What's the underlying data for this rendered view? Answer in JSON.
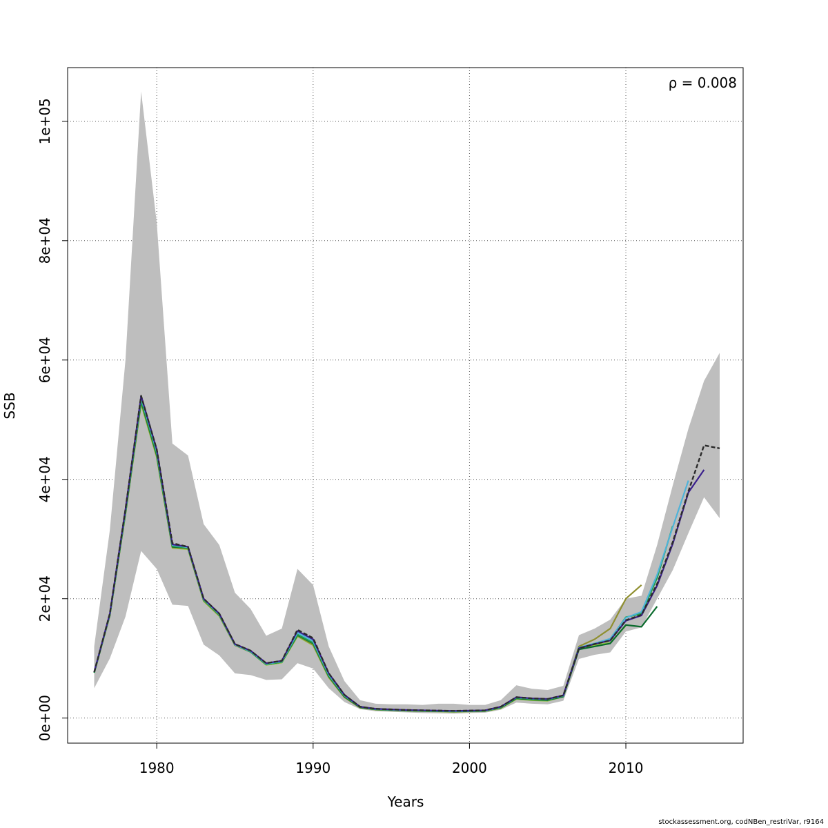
{
  "chart_data": {
    "type": "line",
    "xlabel": "Years",
    "ylabel": "SSB",
    "annotation": "ρ = 0.008",
    "xlim": [
      1974.3,
      2017.5
    ],
    "ylim": [
      -4200,
      109000
    ],
    "x_ticks": [
      1980,
      1990,
      2000,
      2010
    ],
    "x_tick_labels": [
      "1980",
      "1990",
      "2000",
      "2010"
    ],
    "y_ticks": [
      0,
      20000,
      40000,
      60000,
      80000,
      100000
    ],
    "y_tick_labels": [
      "0e+00",
      "2e+04",
      "4e+04",
      "6e+04",
      "8e+04",
      "1e+05"
    ],
    "grid": true,
    "band_color": "#bebebe",
    "confidence_band": {
      "x": [
        1976,
        1977,
        1978,
        1979,
        1980,
        1981,
        1982,
        1983,
        1984,
        1985,
        1986,
        1987,
        1988,
        1989,
        1990,
        1991,
        1992,
        1993,
        1994,
        1995,
        1996,
        1997,
        1998,
        1999,
        2000,
        2001,
        2002,
        2003,
        2004,
        2005,
        2006,
        2007,
        2008,
        2009,
        2010,
        2011,
        2012,
        2013,
        2014,
        2015,
        2016
      ],
      "lower": [
        5000,
        10000,
        17000,
        28000,
        25000,
        19000,
        18800,
        12300,
        10500,
        7500,
        7200,
        6400,
        6500,
        9200,
        8300,
        5000,
        2700,
        1500,
        1150,
        1050,
        950,
        850,
        800,
        750,
        850,
        900,
        1400,
        2600,
        2400,
        2300,
        2900,
        9900,
        10600,
        11000,
        14500,
        15200,
        20000,
        24800,
        31000,
        37000,
        33500
      ],
      "upper": [
        12000,
        31500,
        60000,
        105000,
        83000,
        46000,
        44000,
        32500,
        29000,
        21000,
        18300,
        13800,
        15000,
        25000,
        22300,
        12000,
        6200,
        3000,
        2400,
        2300,
        2300,
        2200,
        2400,
        2400,
        2200,
        2200,
        3000,
        5500,
        4900,
        4700,
        5400,
        13900,
        15000,
        16500,
        20000,
        20500,
        29000,
        39000,
        48500,
        56500,
        61200
      ]
    },
    "series": [
      {
        "color": "#2b2b2b",
        "dashed": true,
        "x": [
          1976,
          1977,
          1978,
          1979,
          1980,
          1981,
          1982,
          1983,
          1984,
          1985,
          1986,
          1987,
          1988,
          1989,
          1990,
          1991,
          1992,
          1993,
          1994,
          1995,
          1996,
          1997,
          1998,
          1999,
          2000,
          2001,
          2002,
          2003,
          2004,
          2005,
          2006,
          2007,
          2008,
          2009,
          2010,
          2011,
          2012,
          2013,
          2014,
          2015,
          2016
        ],
        "values": [
          7700,
          17500,
          35000,
          54000,
          45000,
          29300,
          28700,
          20000,
          17500,
          12400,
          11300,
          9200,
          9600,
          14800,
          13400,
          7500,
          3900,
          1900,
          1550,
          1450,
          1350,
          1300,
          1250,
          1200,
          1250,
          1300,
          1900,
          3500,
          3300,
          3200,
          3800,
          11700,
          12400,
          13000,
          16400,
          17300,
          22500,
          29500,
          38000,
          45700,
          45200
        ]
      },
      {
        "color": "#3a1f8c",
        "dashed": false,
        "x": [
          1976,
          1977,
          1978,
          1979,
          1980,
          1981,
          1982,
          1983,
          1984,
          1985,
          1986,
          1987,
          1988,
          1989,
          1990,
          1991,
          1992,
          1993,
          1994,
          1995,
          1996,
          1997,
          1998,
          1999,
          2000,
          2001,
          2002,
          2003,
          2004,
          2005,
          2006,
          2007,
          2008,
          2009,
          2010,
          2011,
          2012,
          2013,
          2014,
          2015
        ],
        "values": [
          7700,
          17500,
          35000,
          54000,
          45000,
          29100,
          28700,
          20000,
          17500,
          12400,
          11300,
          9200,
          9600,
          14600,
          13200,
          7500,
          3900,
          1900,
          1550,
          1450,
          1350,
          1300,
          1250,
          1200,
          1250,
          1300,
          1900,
          3500,
          3300,
          3200,
          3800,
          11700,
          12400,
          13000,
          16300,
          17200,
          22200,
          29200,
          37800,
          41600
        ]
      },
      {
        "color": "#4fb3d9",
        "dashed": false,
        "x": [
          1976,
          1977,
          1978,
          1979,
          1980,
          1981,
          1982,
          1983,
          1984,
          1985,
          1986,
          1987,
          1988,
          1989,
          1990,
          1991,
          1992,
          1993,
          1994,
          1995,
          1996,
          1997,
          1998,
          1999,
          2000,
          2001,
          2002,
          2003,
          2004,
          2005,
          2006,
          2007,
          2008,
          2009,
          2010,
          2011,
          2012,
          2013,
          2014
        ],
        "values": [
          7700,
          17400,
          34800,
          53700,
          44700,
          29000,
          28600,
          19900,
          17400,
          12300,
          11200,
          9100,
          9500,
          14300,
          12900,
          7300,
          3800,
          1900,
          1500,
          1400,
          1300,
          1250,
          1200,
          1150,
          1200,
          1250,
          1850,
          3450,
          3250,
          3150,
          3750,
          11800,
          12500,
          13300,
          16800,
          17800,
          24000,
          32000,
          39800
        ]
      },
      {
        "color": "#1e9e4a",
        "dashed": false,
        "x": [
          1976,
          1977,
          1978,
          1979,
          1980,
          1981,
          1982,
          1983,
          1984,
          1985,
          1986,
          1987,
          1988,
          1989,
          1990,
          1991,
          1992,
          1993,
          1994,
          1995,
          1996,
          1997,
          1998,
          1999,
          2000,
          2001,
          2002,
          2003,
          2004,
          2005,
          2006,
          2007,
          2008,
          2009,
          2010,
          2011,
          2012,
          2013
        ],
        "values": [
          7600,
          17300,
          34500,
          53300,
          44300,
          28800,
          28500,
          19800,
          17300,
          12300,
          11100,
          9000,
          9400,
          14000,
          12600,
          7100,
          3700,
          1850,
          1500,
          1400,
          1300,
          1250,
          1200,
          1150,
          1200,
          1250,
          1800,
          3400,
          3200,
          3100,
          3700,
          11800,
          12500,
          13200,
          16900,
          17500,
          23500,
          32200
        ]
      },
      {
        "color": "#0b6b2e",
        "dashed": false,
        "x": [
          1976,
          1977,
          1978,
          1979,
          1980,
          1981,
          1982,
          1983,
          1984,
          1985,
          1986,
          1987,
          1988,
          1989,
          1990,
          1991,
          1992,
          1993,
          1994,
          1995,
          1996,
          1997,
          1998,
          1999,
          2000,
          2001,
          2002,
          2003,
          2004,
          2005,
          2006,
          2007,
          2008,
          2009,
          2010,
          2011,
          2012
        ],
        "values": [
          7600,
          17300,
          34400,
          53100,
          44100,
          28700,
          28500,
          19800,
          17300,
          12300,
          11100,
          9000,
          9400,
          13900,
          12500,
          7000,
          3600,
          1800,
          1450,
          1350,
          1250,
          1200,
          1150,
          1100,
          1150,
          1200,
          1750,
          3300,
          3100,
          3000,
          3600,
          11500,
          12000,
          12500,
          15600,
          15300,
          18700
        ]
      },
      {
        "color": "#8f8f2f",
        "dashed": false,
        "x": [
          1976,
          1977,
          1978,
          1979,
          1980,
          1981,
          1982,
          1983,
          1984,
          1985,
          1986,
          1987,
          1988,
          1989,
          1990,
          1991,
          1992,
          1993,
          1994,
          1995,
          1996,
          1997,
          1998,
          1999,
          2000,
          2001,
          2002,
          2003,
          2004,
          2005,
          2006,
          2007,
          2008,
          2009,
          2010,
          2011
        ],
        "values": [
          7600,
          17200,
          34300,
          52900,
          43900,
          28600,
          28400,
          19700,
          17200,
          12200,
          11100,
          9000,
          9400,
          13800,
          12300,
          6900,
          3500,
          1750,
          1450,
          1350,
          1250,
          1200,
          1150,
          1100,
          1150,
          1200,
          1700,
          3300,
          3100,
          3000,
          3700,
          12000,
          13200,
          15000,
          20000,
          22300
        ]
      },
      {
        "color": "#8cc43a",
        "dashed": false,
        "x": [
          1976,
          1977,
          1978,
          1979,
          1980,
          1981,
          1982,
          1983,
          1984,
          1985,
          1986,
          1987,
          1988,
          1989,
          1990,
          1991,
          1992,
          1993,
          1994,
          1995,
          1996,
          1997,
          1998,
          1999,
          2000,
          2001,
          2002,
          2003,
          2004,
          2005,
          2006,
          2007,
          2008,
          2009,
          2010
        ],
        "values": [
          7600,
          17200,
          34200,
          52700,
          43700,
          28500,
          28300,
          19600,
          17100,
          12200,
          11100,
          8900,
          9300,
          13700,
          12200,
          6800,
          3500,
          1750,
          1400,
          1300,
          1200,
          1150,
          1100,
          1050,
          1100,
          1150,
          1650,
          3200,
          3000,
          2900,
          3600,
          11600,
          12200,
          12600,
          15500
        ]
      }
    ]
  },
  "footer": "stockassessment.org, codNBen_restriVar, r9164"
}
